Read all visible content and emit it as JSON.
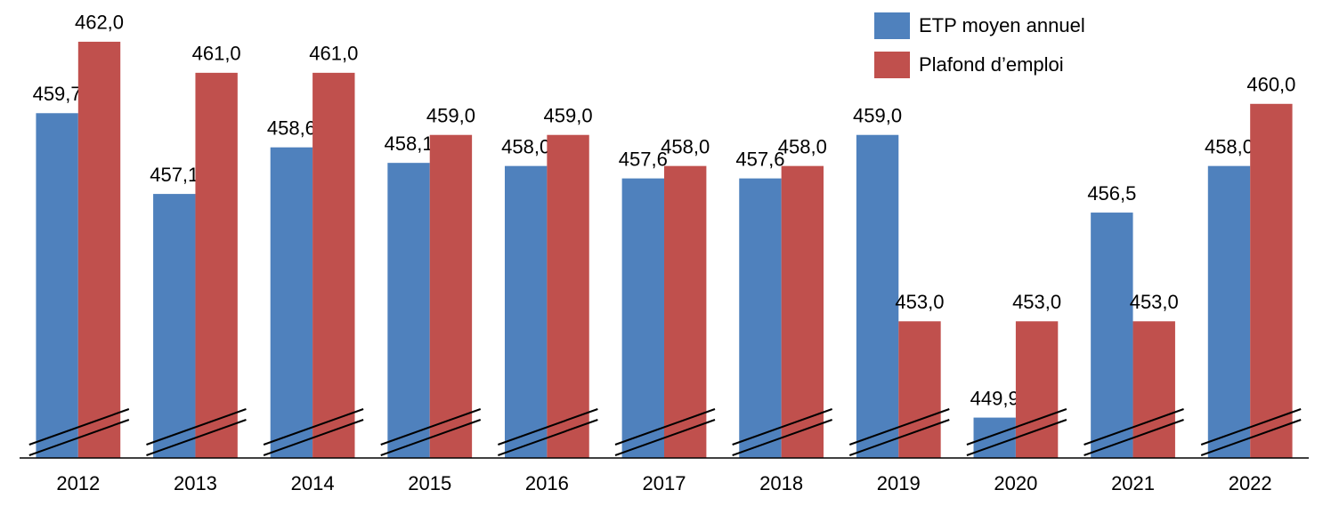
{
  "chart_data": {
    "type": "bar",
    "categories": [
      "2012",
      "2013",
      "2014",
      "2015",
      "2016",
      "2017",
      "2018",
      "2019",
      "2020",
      "2021",
      "2022"
    ],
    "series": [
      {
        "name": "ETP moyen annuel",
        "color": "#4f81bd",
        "values": [
          459.7,
          457.1,
          458.6,
          458.1,
          458.0,
          457.6,
          457.6,
          459.0,
          449.9,
          456.5,
          458.0
        ],
        "value_labels": [
          "459,7",
          "457,1",
          "458,6",
          "458,1",
          "458,0",
          "457,6",
          "457,6",
          "459,0",
          "449,9",
          "456,5",
          "458,0"
        ]
      },
      {
        "name": "Plafond d’emploi",
        "color": "#c0504d",
        "values": [
          462.0,
          461.0,
          461.0,
          459.0,
          459.0,
          458.0,
          458.0,
          453.0,
          453.0,
          453.0,
          460.0
        ],
        "value_labels": [
          "462,0",
          "461,0",
          "461,0",
          "459,0",
          "459,0",
          "458,0",
          "458,0",
          "453,0",
          "453,0",
          "453,0",
          "460,0"
        ]
      }
    ],
    "ylim": [
      448.6,
      463
    ],
    "legend": "top-right"
  }
}
